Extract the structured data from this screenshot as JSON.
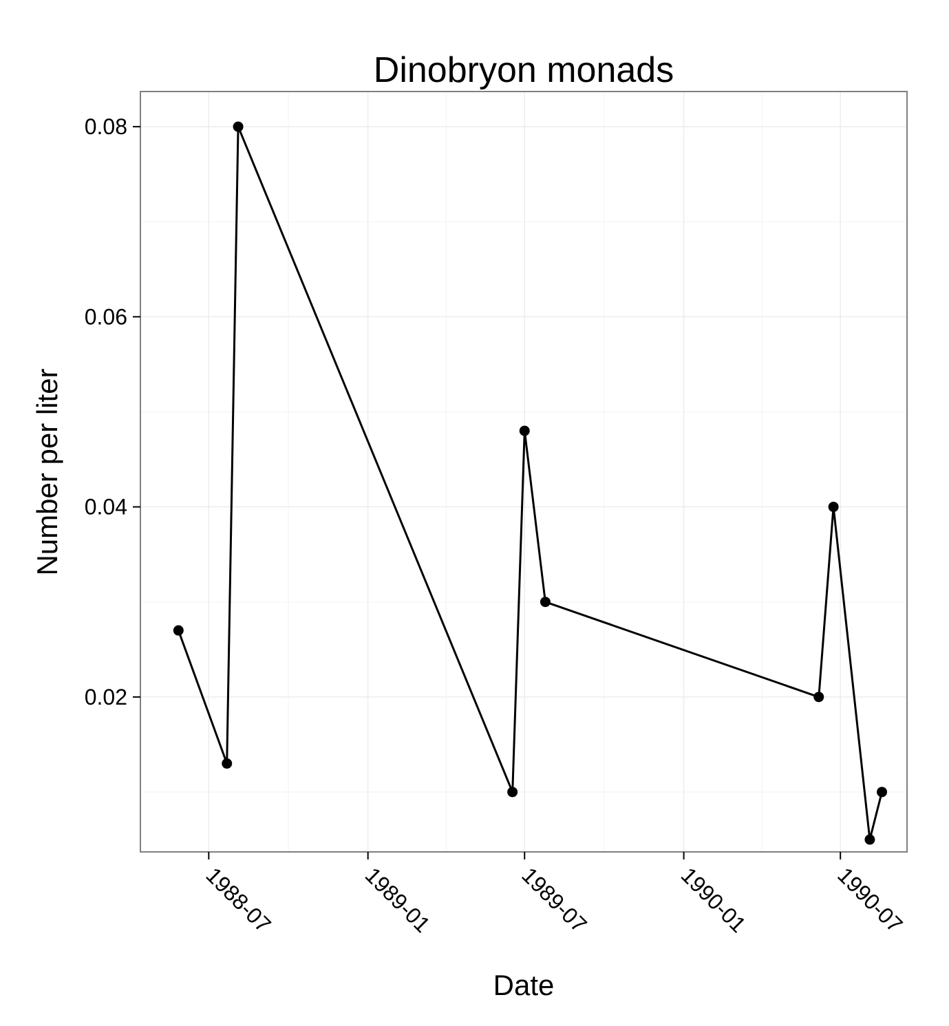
{
  "chart_data": {
    "type": "line",
    "title": "Dinobryon monads",
    "xlabel": "Date",
    "ylabel": "Number per liter",
    "x_ticks": [
      "1988-07",
      "1989-01",
      "1989-07",
      "1990-01",
      "1990-07"
    ],
    "y_ticks": [
      "0.02",
      "0.04",
      "0.06",
      "0.08"
    ],
    "ylim": [
      0.0037,
      0.0837
    ],
    "xlim": [
      "1988-04-13",
      "1990-09-16"
    ],
    "grid": true,
    "colors": {
      "line": "#000000",
      "point": "#000000",
      "panel_border": "#7f7f7f",
      "grid": "#ebebeb"
    },
    "series": [
      {
        "x": [
          "1988-05-27",
          "1988-07-22",
          "1988-08-04",
          "1989-06-17",
          "1989-07-01",
          "1989-07-25",
          "1990-06-06",
          "1990-06-23",
          "1990-08-04",
          "1990-08-18"
        ],
        "y": [
          0.027,
          0.013,
          0.08,
          0.01,
          0.048,
          0.03,
          0.02,
          0.04,
          0.005,
          0.01
        ]
      }
    ]
  }
}
